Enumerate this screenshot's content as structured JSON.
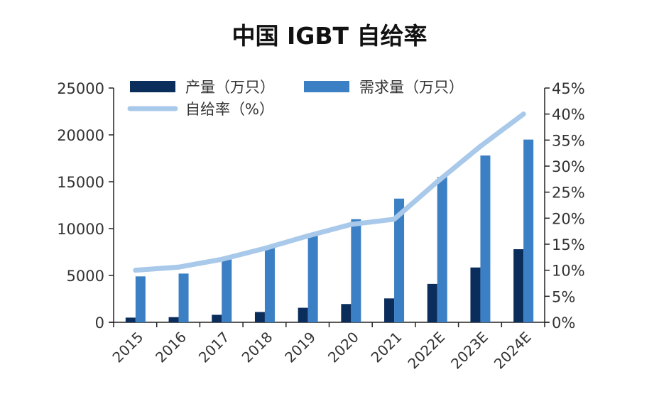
{
  "chart_data": {
    "type": "bar",
    "title": "中国 IGBT 自给率",
    "categories": [
      "2015",
      "2016",
      "2017",
      "2018",
      "2019",
      "2020",
      "2021",
      "2022E",
      "2023E",
      "2024E"
    ],
    "series": [
      {
        "name": "产量（万只）",
        "type": "bar",
        "axis": "left",
        "color": "#0b2d5c",
        "values": [
          500,
          550,
          800,
          1100,
          1550,
          1950,
          2550,
          4100,
          5850,
          7800
        ]
      },
      {
        "name": "需求量（万只）",
        "type": "bar",
        "axis": "left",
        "color": "#3b7fc4",
        "values": [
          4900,
          5200,
          6700,
          8000,
          9400,
          11000,
          13200,
          15500,
          17800,
          19500
        ]
      },
      {
        "name": "自给率（%）",
        "type": "line",
        "axis": "right",
        "color": "#a9c9ea",
        "values": [
          10,
          10.6,
          12.1,
          14.2,
          16.6,
          18.8,
          19.8,
          27.0,
          33.8,
          40.0
        ]
      }
    ],
    "left_axis": {
      "ylim": [
        0,
        25000
      ],
      "ticks": [
        "0",
        "5000",
        "10000",
        "15000",
        "20000",
        "25000"
      ]
    },
    "right_axis": {
      "ylim": [
        0,
        45
      ],
      "ticks": [
        "0%",
        "5%",
        "10%",
        "15%",
        "20%",
        "25%",
        "30%",
        "35%",
        "40%",
        "45%"
      ]
    },
    "legend_position": "top-left",
    "grid": false
  }
}
